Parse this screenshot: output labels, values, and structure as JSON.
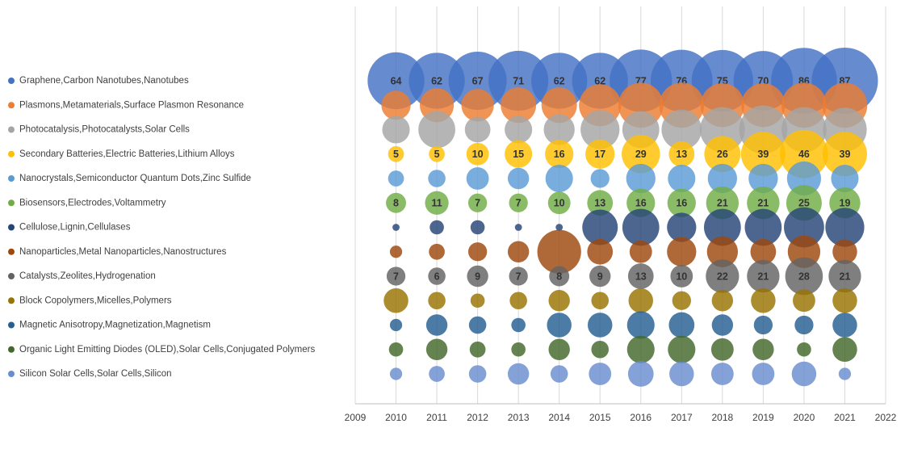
{
  "chart_data": {
    "type": "bubble",
    "x": [
      2010,
      2011,
      2012,
      2013,
      2014,
      2015,
      2016,
      2017,
      2018,
      2019,
      2020,
      2021
    ],
    "xlim": [
      2009,
      2022
    ],
    "xticks": [
      2009,
      2010,
      2011,
      2012,
      2013,
      2014,
      2015,
      2016,
      2017,
      2018,
      2019,
      2020,
      2021,
      2022
    ],
    "grid": true,
    "legend": "left",
    "series": [
      {
        "name": "Graphene,Carbon Nanotubes,Nanotubes",
        "color": "#4472c4",
        "show_labels": true,
        "values": [
          64,
          62,
          67,
          71,
          62,
          62,
          77,
          76,
          75,
          70,
          86,
          87
        ]
      },
      {
        "name": "Plasmons,Metamaterials,Surface Plasmon Resonance",
        "color": "#ed7d31",
        "values": [
          17,
          23,
          21,
          25,
          25,
          35,
          40,
          40,
          38,
          38,
          40,
          40
        ]
      },
      {
        "name": "Photocatalysis,Photocatalysts,Solar Cells",
        "color": "#a5a5a5",
        "values": [
          15,
          27,
          13,
          15,
          19,
          30,
          27,
          32,
          40,
          46,
          40,
          38
        ]
      },
      {
        "name": "Secondary Batteries,Electric Batteries,Lithium Alloys",
        "color": "#ffc000",
        "show_labels": true,
        "values": [
          5,
          5,
          10,
          15,
          16,
          17,
          29,
          13,
          26,
          39,
          46,
          39
        ]
      },
      {
        "name": "Nanocrystals,Semiconductor Quantum Dots,Zinc Sulfide",
        "color": "#5b9bd5",
        "values": [
          5,
          6,
          10,
          9,
          15,
          7,
          17,
          15,
          17,
          17,
          23,
          15
        ]
      },
      {
        "name": "Biosensors,Electrodes,Voltammetry",
        "color": "#70ad47",
        "show_labels": true,
        "values": [
          8,
          11,
          7,
          7,
          10,
          13,
          16,
          16,
          21,
          21,
          25,
          19
        ]
      },
      {
        "name": "Cellulose,Lignin,Cellulases",
        "color": "#264478",
        "values": [
          1,
          4,
          4,
          1,
          1,
          25,
          27,
          17,
          27,
          27,
          32,
          30
        ]
      },
      {
        "name": "Nanoparticles,Metal Nanoparticles,Nanostructures",
        "color": "#9e480e",
        "values": [
          3,
          5,
          7,
          9,
          38,
          13,
          10,
          17,
          19,
          13,
          21,
          12
        ]
      },
      {
        "name": "Catalysts,Zeolites,Hydrogenation",
        "color": "#636363",
        "show_labels": true,
        "values": [
          7,
          6,
          9,
          7,
          8,
          9,
          13,
          10,
          22,
          21,
          28,
          21
        ]
      },
      {
        "name": "Block Copolymers,Micelles,Polymers",
        "color": "#997300",
        "values": [
          12,
          6,
          4,
          6,
          9,
          6,
          12,
          7,
          9,
          12,
          10,
          12
        ]
      },
      {
        "name": "Magnetic Anisotropy,Magnetization,Magnetism",
        "color": "#255e91",
        "values": [
          3,
          9,
          6,
          4,
          12,
          12,
          15,
          13,
          9,
          7,
          7,
          12
        ]
      },
      {
        "name": "Organic Light Emitting Diodes (OLED),Solar Cells,Conjugated Polymers",
        "color": "#43682b",
        "values": [
          4,
          9,
          5,
          4,
          9,
          6,
          15,
          15,
          10,
          9,
          4,
          12
        ]
      },
      {
        "name": "Silicon Solar Cells,Solar Cells,Silicon",
        "color": "#698ed0",
        "values": [
          3,
          5,
          6,
          9,
          6,
          10,
          13,
          12,
          10,
          10,
          12,
          3
        ]
      }
    ]
  }
}
